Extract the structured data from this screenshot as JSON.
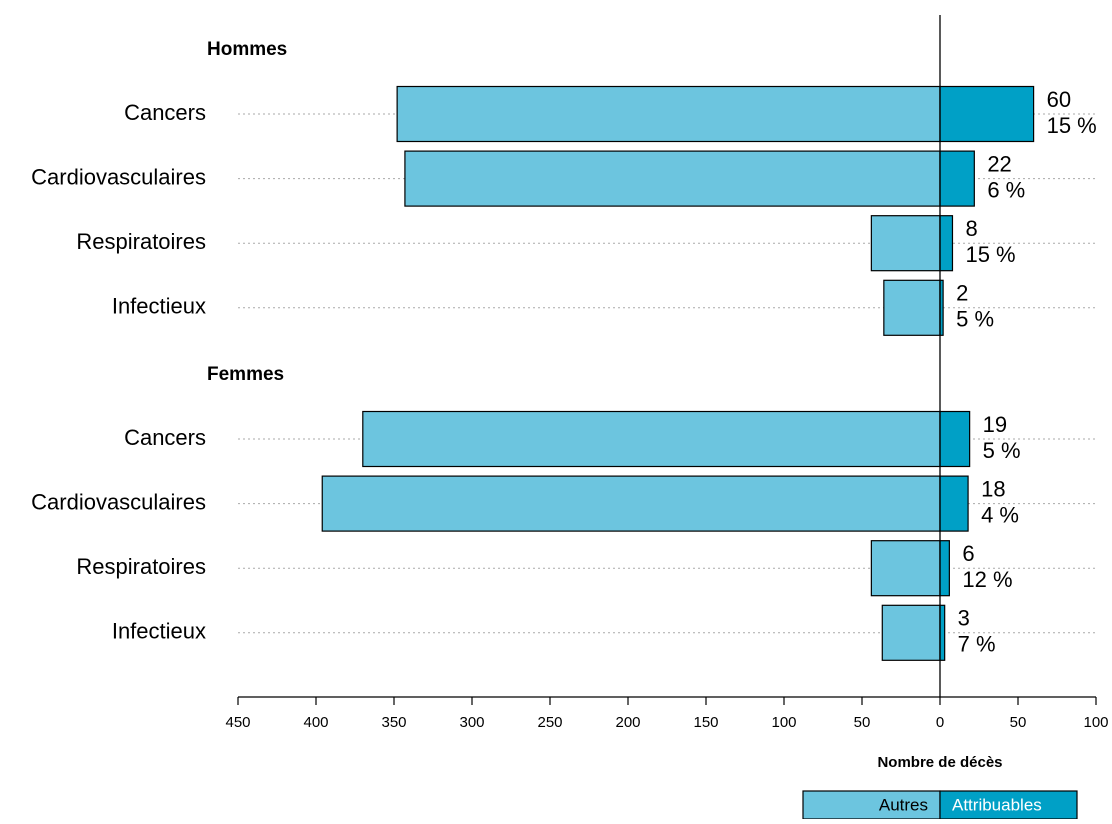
{
  "chart_data": {
    "type": "diverging-bar",
    "groups": [
      "Hommes",
      "Femmes"
    ],
    "categories": [
      "Cancers",
      "Cardiovasculaires",
      "Respiratoires",
      "Infectieux",
      "Cancers",
      "Cardiovasculaires",
      "Respiratoires",
      "Infectieux"
    ],
    "series": [
      {
        "name": "Autres",
        "color": "#6cc5df",
        "values": [
          -348,
          -343,
          -44,
          -36,
          -370,
          -396,
          -44,
          -37
        ]
      },
      {
        "name": "Attribuables",
        "color": "#00a0c6",
        "values": [
          60,
          22,
          8,
          2,
          19,
          18,
          6,
          3
        ],
        "percent": [
          15,
          6,
          15,
          5,
          5,
          4,
          12,
          7
        ],
        "percent_labels": [
          "15 %",
          "6 %",
          "15 %",
          "5 %",
          "5 %",
          "4 %",
          "12 %",
          "7 %"
        ]
      }
    ],
    "xlabel": "Nombre de décès",
    "xlim": [
      -450,
      100
    ],
    "xticks": [
      {
        "value": -450,
        "label": "450"
      },
      {
        "value": -400,
        "label": "400"
      },
      {
        "value": -350,
        "label": "350"
      },
      {
        "value": -300,
        "label": "300"
      },
      {
        "value": -250,
        "label": "250"
      },
      {
        "value": -200,
        "label": "200"
      },
      {
        "value": -150,
        "label": "150"
      },
      {
        "value": -100,
        "label": "100"
      },
      {
        "value": -50,
        "label": "50"
      },
      0,
      50,
      100
    ],
    "grid": true
  }
}
